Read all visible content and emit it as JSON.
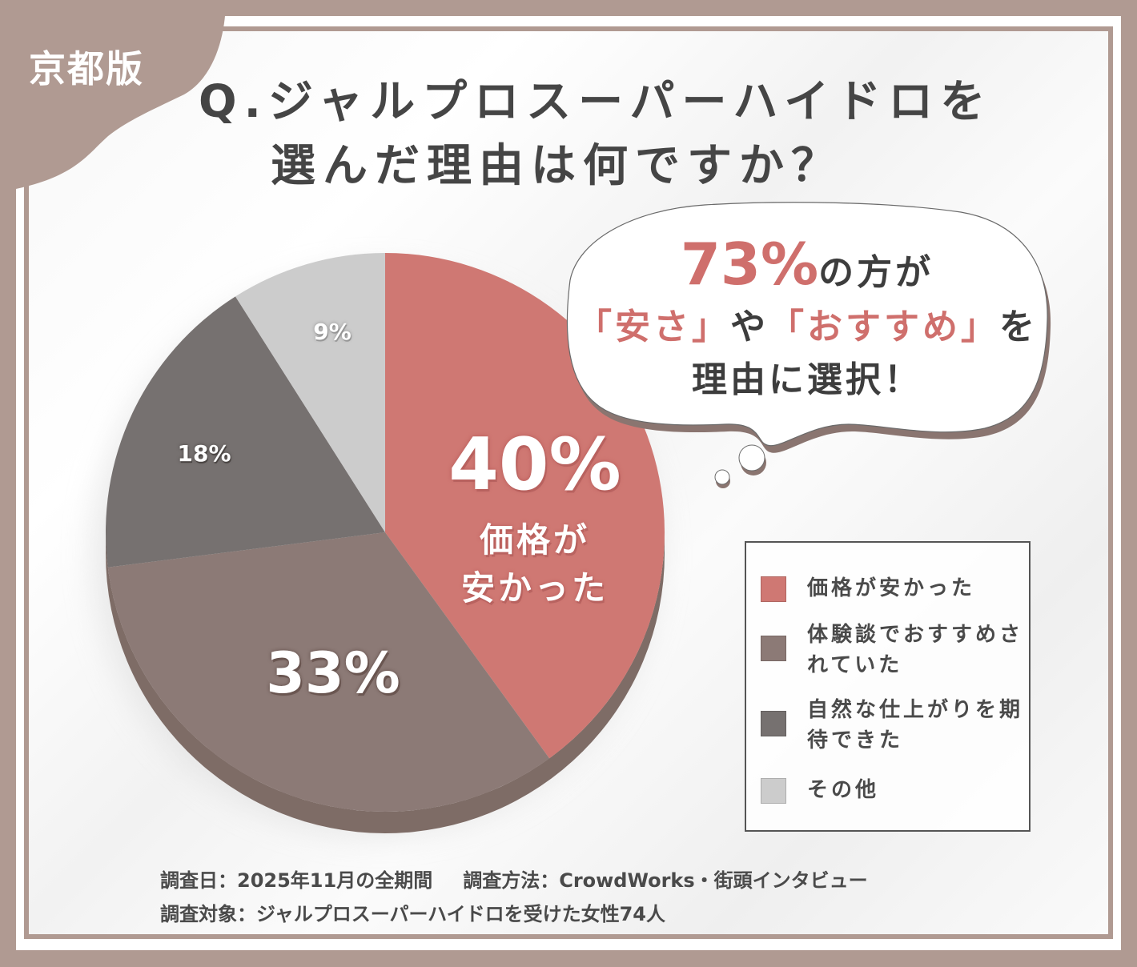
{
  "badge": {
    "label": "京都版",
    "color": "#b09a92"
  },
  "title": {
    "line1": "Q.ジャルプロスーパーハイドロを",
    "line2": "選んだ理由は何ですか？"
  },
  "callout": {
    "highlight_pct": "73%",
    "line1_rest": "の方が",
    "line2_part1": "「安さ」",
    "line2_mid": "や",
    "line2_part2": "「おすすめ」",
    "line2_end": "を",
    "line3": "理由に選択！"
  },
  "slice_labels": {
    "s1_pct": "40%",
    "s1_line1": "価格が",
    "s1_line2": "安かった",
    "s2_pct": "33%",
    "s3_pct": "18%",
    "s4_pct": "9%"
  },
  "legend": {
    "items": [
      {
        "label": "価格が安かった",
        "color": "#cf7873"
      },
      {
        "label": "体験談でおすすめされていた",
        "color": "#8c7a76"
      },
      {
        "label": "自然な仕上がりを期待できた",
        "color": "#767170"
      },
      {
        "label": "その他",
        "color": "#cccccc"
      }
    ]
  },
  "footer": {
    "date_label": "調査日：2025年11月の全期間",
    "method_label": "調査方法：CrowdWorks・街頭インタビュー",
    "target_label": "調査対象：ジャルプロスーパーハイドロを受けた女性74人"
  },
  "colors": {
    "accent": "#cf6f6c",
    "frame": "#b09a92",
    "title_text": "#454545"
  },
  "chart_data": {
    "type": "pie",
    "title": "Q.ジャルプロスーパーハイドロを選んだ理由は何ですか？",
    "categories": [
      "価格が安かった",
      "体験談でおすすめされていた",
      "自然な仕上がりを期待できた",
      "その他"
    ],
    "values": [
      40,
      33,
      18,
      9
    ],
    "unit": "%",
    "colors": [
      "#cf7873",
      "#8c7a76",
      "#767170",
      "#cccccc"
    ],
    "start_angle": "12 o'clock, clockwise",
    "legend_position": "right",
    "annotation": "73%の方が「安さ」や「おすすめ」を理由に選択！",
    "sample_size": 74
  }
}
